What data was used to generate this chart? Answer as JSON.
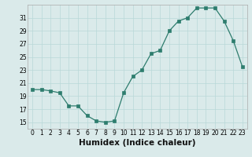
{
  "x": [
    0,
    1,
    2,
    3,
    4,
    5,
    6,
    7,
    8,
    9,
    10,
    11,
    12,
    13,
    14,
    15,
    16,
    17,
    18,
    19,
    20,
    21,
    22,
    23
  ],
  "y": [
    20,
    20,
    19.8,
    19.5,
    17.5,
    17.5,
    16,
    15.2,
    15,
    15.2,
    19.5,
    22,
    23,
    25.5,
    26,
    29,
    30.5,
    31,
    32.5,
    32.5,
    32.5,
    30.5,
    27.5,
    23.5
  ],
  "line_color": "#2e7d6e",
  "marker_color": "#2e7d6e",
  "bg_color": "#daeaea",
  "grid_color": "#b8d8d8",
  "xlabel": "Humidex (Indice chaleur)",
  "xlim": [
    -0.5,
    23.5
  ],
  "ylim": [
    14,
    33
  ],
  "yticks": [
    15,
    17,
    19,
    21,
    23,
    25,
    27,
    29,
    31
  ],
  "xticks": [
    0,
    1,
    2,
    3,
    4,
    5,
    6,
    7,
    8,
    9,
    10,
    11,
    12,
    13,
    14,
    15,
    16,
    17,
    18,
    19,
    20,
    21,
    22,
    23
  ],
  "tick_fontsize": 5.5,
  "xlabel_fontsize": 7.5
}
